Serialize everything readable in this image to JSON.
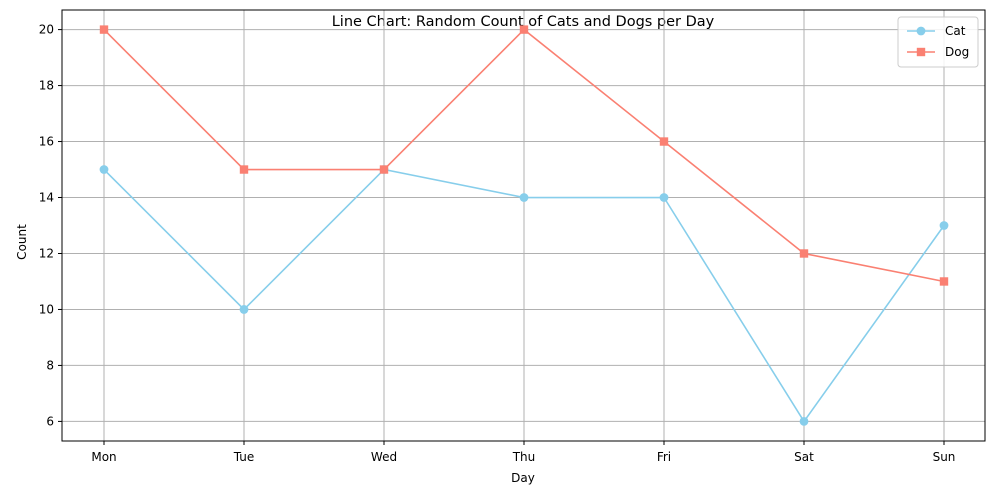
{
  "chart_data": {
    "type": "line",
    "title": "Line Chart: Random Count of Cats and Dogs per Day",
    "xlabel": "Day",
    "ylabel": "Count",
    "categories": [
      "Mon",
      "Tue",
      "Wed",
      "Thu",
      "Fri",
      "Sat",
      "Sun"
    ],
    "ylim": [
      5.3,
      20.7
    ],
    "yticks": [
      6,
      8,
      10,
      12,
      14,
      16,
      18,
      20
    ],
    "grid": true,
    "legend_position": "top-right",
    "series": [
      {
        "name": "Cat",
        "values": [
          15,
          10,
          15,
          14,
          14,
          6,
          13
        ],
        "color": "#87CEEB",
        "marker": "circle"
      },
      {
        "name": "Dog",
        "values": [
          20,
          15,
          15,
          20,
          16,
          12,
          11
        ],
        "color": "#FA8072",
        "marker": "square"
      }
    ]
  }
}
